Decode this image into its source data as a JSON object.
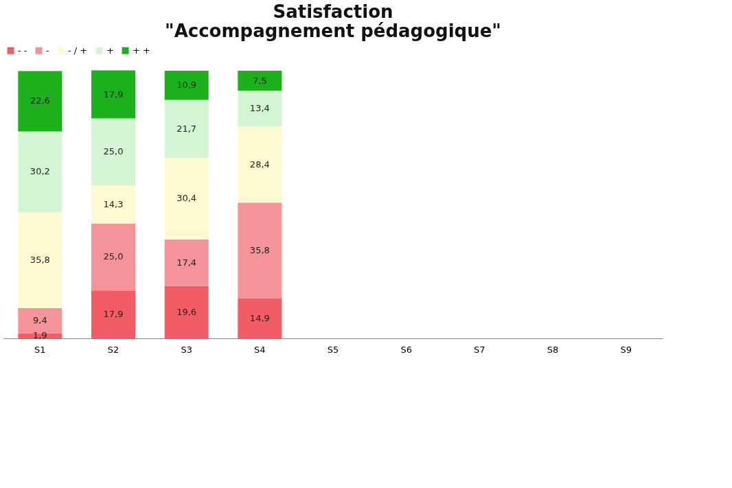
{
  "chart_data": {
    "type": "bar",
    "title": [
      "Satisfaction",
      "\"Accompagnement pédagogique\""
    ],
    "categories": [
      "S1",
      "S2",
      "S3",
      "S4",
      "S5",
      "S6",
      "S7",
      "S8",
      "S9"
    ],
    "stacked": true,
    "ylim": [
      0,
      100
    ],
    "tick_labels": "x",
    "grid": false,
    "legend": "top",
    "series": [
      {
        "name": "- -",
        "color": "#f25c64",
        "values": [
          1.9,
          17.9,
          19.6,
          14.9,
          null,
          null,
          null,
          null,
          null
        ],
        "value_labels": [
          "1,9",
          "17,9",
          "19,6",
          "14,9",
          null,
          null,
          null,
          null,
          null
        ]
      },
      {
        "name": "-",
        "color": "#f5939a",
        "values": [
          9.4,
          25.0,
          17.4,
          35.8,
          null,
          null,
          null,
          null,
          null
        ],
        "value_labels": [
          "9,4",
          "25,0",
          "17,4",
          "35,8",
          null,
          null,
          null,
          null,
          null
        ]
      },
      {
        "name": "- / +",
        "color": "#fdfad2",
        "values": [
          35.8,
          14.3,
          30.4,
          28.4,
          null,
          null,
          null,
          null,
          null
        ],
        "value_labels": [
          "35,8",
          "14,3",
          "30,4",
          "28,4",
          null,
          null,
          null,
          null,
          null
        ]
      },
      {
        "name": "+",
        "color": "#d3f5d3",
        "values": [
          30.2,
          25.0,
          21.7,
          13.4,
          null,
          null,
          null,
          null,
          null
        ],
        "value_labels": [
          "30,2",
          "25,0",
          "21,7",
          "13,4",
          null,
          null,
          null,
          null,
          null
        ]
      },
      {
        "name": "+ +",
        "color": "#1cb01c",
        "values": [
          22.6,
          17.9,
          10.9,
          7.5,
          null,
          null,
          null,
          null,
          null
        ],
        "value_labels": [
          "22,6",
          "17,9",
          "10,9",
          "7,5",
          null,
          null,
          null,
          null,
          null
        ]
      }
    ]
  }
}
